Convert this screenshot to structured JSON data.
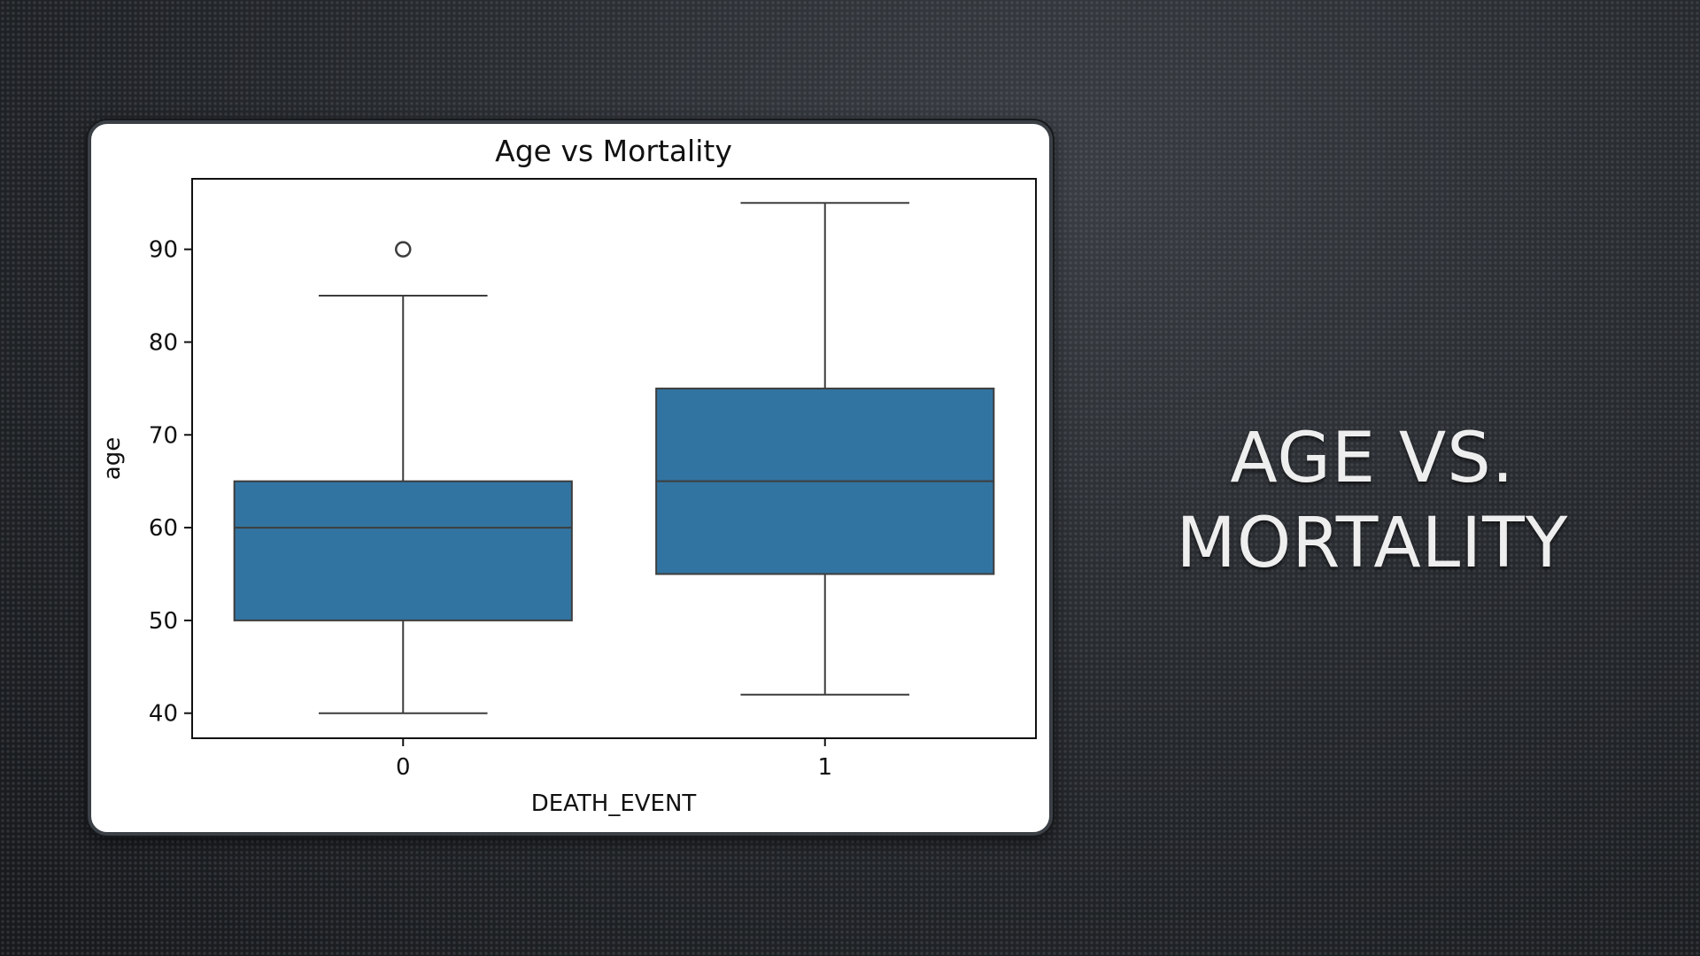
{
  "slide": {
    "title_line1": "AGE VS.",
    "title_line2": "MORTALITY"
  },
  "chart_data": {
    "type": "box",
    "title": "Age vs Mortality",
    "xlabel": "DEATH_EVENT",
    "ylabel": "age",
    "categories": [
      "0",
      "1"
    ],
    "ylim": [
      37.3,
      97.6
    ],
    "yticks": [
      40,
      50,
      60,
      70,
      80,
      90
    ],
    "boxes": [
      {
        "category": "0",
        "whisker_low": 40,
        "q1": 50,
        "median": 60,
        "q3": 65,
        "whisker_high": 85,
        "outliers": [
          90
        ]
      },
      {
        "category": "1",
        "whisker_low": 42,
        "q1": 55,
        "median": 65,
        "q3": 75,
        "whisker_high": 95,
        "outliers": []
      }
    ],
    "colors": {
      "box_fill": "#3274a1",
      "line": "#3d3d3d"
    },
    "grid": false,
    "legend": "none"
  }
}
